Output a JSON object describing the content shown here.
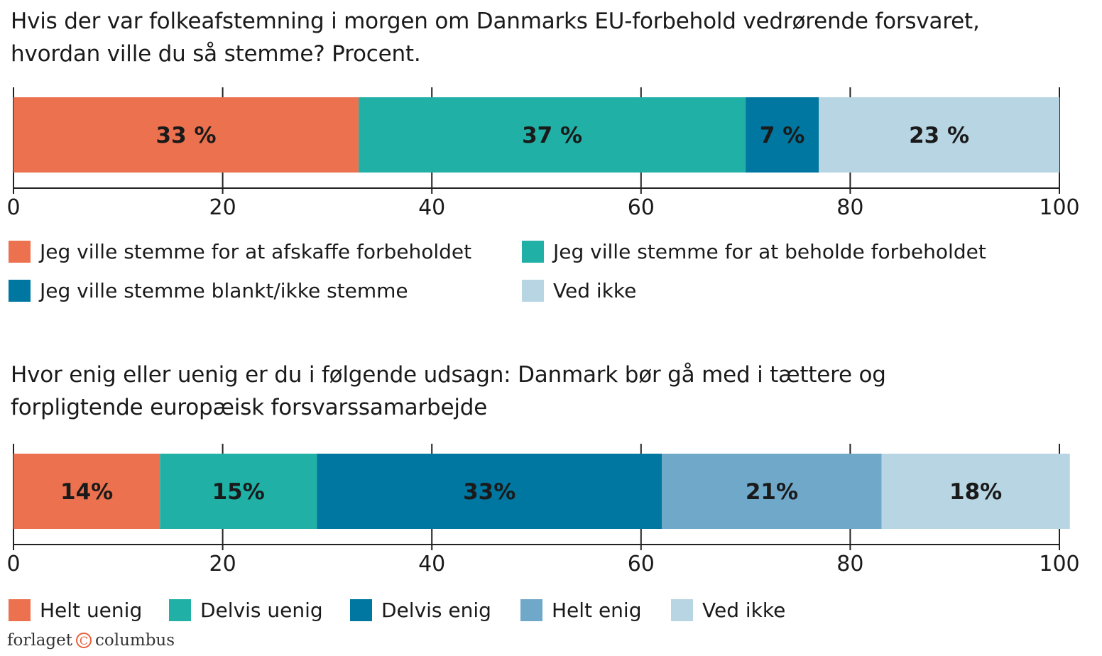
{
  "chart_data": [
    {
      "type": "bar",
      "stacked": true,
      "orientation": "horizontal",
      "title": "Hvis der var folkeafstemning i morgen om Danmarks EU-forbehold vedrørende forsvaret, hvordan ville du så stemme? Procent.",
      "title_lines": [
        "Hvis der var folkeafstemning i morgen om Danmarks EU-forbehold vedrørende forsvaret,",
        "hvordan ville du så stemme? Procent."
      ],
      "xlim": [
        0,
        100
      ],
      "xticks": [
        "0",
        "20",
        "40",
        "60",
        "80",
        "100"
      ],
      "grid": true,
      "legend_position": "bottom",
      "series": [
        {
          "name": "Jeg ville stemme for at afskaffe forbeholdet",
          "value": 33,
          "label": "33 %",
          "color": "#EB714F"
        },
        {
          "name": "Jeg ville stemme for at beholde forbeholdet",
          "value": 37,
          "label": "37 %",
          "color": "#20B0A5"
        },
        {
          "name": "Jeg ville stemme blankt/ikke stemme",
          "value": 7,
          "label": "7 %",
          "color": "#0077A0"
        },
        {
          "name": "Ved ikke",
          "value": 23,
          "label": "23 %",
          "color": "#B8D5E3"
        }
      ]
    },
    {
      "type": "bar",
      "stacked": true,
      "orientation": "horizontal",
      "title": "Hvor enig eller uenig er du i følgende udsagn: Danmark bør gå med i tættere og forpligtende europæisk forsvarssamarbejde",
      "title_lines": [
        "Hvor enig eller uenig er du i følgende udsagn: Danmark bør gå med i tættere og",
        "forpligtende europæisk forsvarssamarbejde"
      ],
      "xlim": [
        0,
        100
      ],
      "xticks": [
        "0",
        "20",
        "40",
        "60",
        "80",
        "100"
      ],
      "grid": true,
      "legend_position": "bottom",
      "series": [
        {
          "name": "Helt uenig",
          "value": 14,
          "label": "14%",
          "color": "#EB714F"
        },
        {
          "name": "Delvis uenig",
          "value": 15,
          "label": "15%",
          "color": "#20B0A5"
        },
        {
          "name": "Delvis enig",
          "value": 33,
          "label": "33%",
          "color": "#0077A0"
        },
        {
          "name": "Helt enig",
          "value": 21,
          "label": "21%",
          "color": "#6FA8C8"
        },
        {
          "name": "Ved ikke",
          "value": 18,
          "label": "18%",
          "color": "#B8D5E3"
        }
      ]
    }
  ],
  "logo": {
    "left": "forlaget",
    "symbol": "C",
    "right": "columbus"
  }
}
